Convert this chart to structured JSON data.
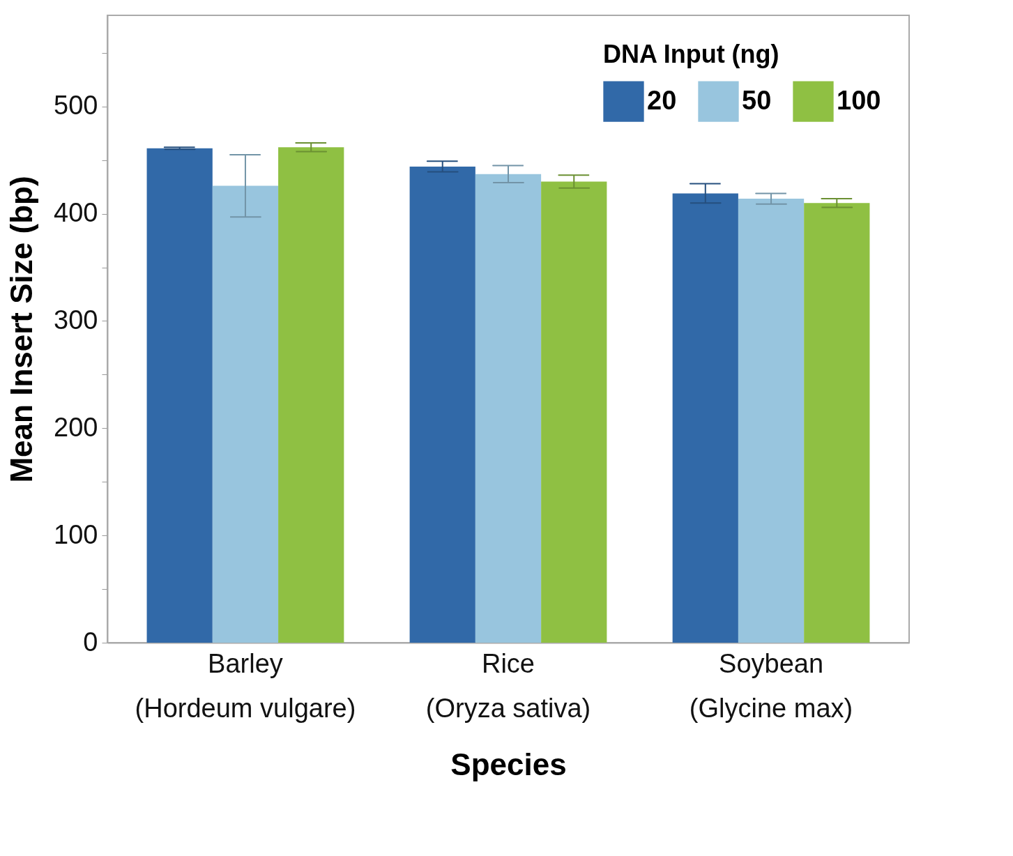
{
  "chart_data": {
    "type": "bar",
    "xlabel": "Species",
    "ylabel": "Mean Insert Size (bp)",
    "legend_title": "DNA Input (ng)",
    "legend": "top right",
    "grid": false,
    "categories": [
      "Barley\n(Hordeum vulgare)",
      "Rice\n(Oryza sativa)",
      "Soybean\n(Glycine max)"
    ],
    "ylim": [
      0,
      585
    ],
    "yticks": [
      0,
      {
        "value": 50,
        "label": null
      },
      100,
      {
        "value": 150,
        "label": null
      },
      200,
      {
        "value": 250,
        "label": null
      },
      300,
      {
        "value": 350,
        "label": null
      },
      400,
      {
        "value": 450,
        "label": null
      },
      500,
      {
        "value": 550,
        "label": null
      }
    ],
    "series": [
      {
        "name": "20",
        "color": "#3169a8",
        "values": [
          461,
          444,
          419
        ],
        "errors": [
          1,
          5,
          9
        ]
      },
      {
        "name": "50",
        "color": "#98c5de",
        "values": [
          426,
          437,
          414
        ],
        "errors": [
          29,
          8,
          5
        ]
      },
      {
        "name": "100",
        "color": "#8fc043",
        "values": [
          462,
          430,
          410
        ],
        "errors": [
          4,
          6,
          4
        ]
      }
    ]
  }
}
